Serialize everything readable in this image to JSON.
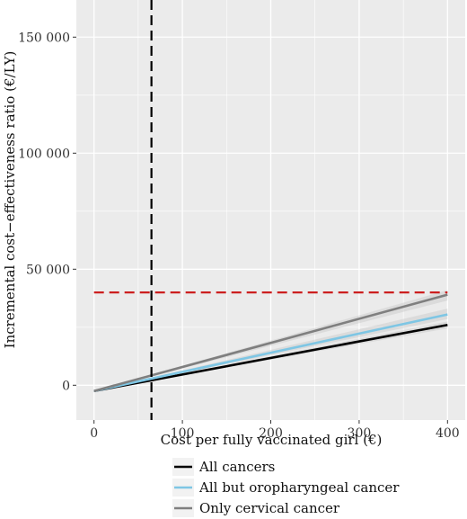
{
  "chart_data": {
    "type": "line",
    "xlabel": "Cost per fully vaccinated girl (€)",
    "ylabel": "Incremental cost−effectiveness ratio (€/LY)",
    "xlim": [
      -20,
      420
    ],
    "ylim": [
      -15000,
      166000
    ],
    "x_ticks": [
      0,
      100,
      200,
      300,
      400
    ],
    "x_tick_labels": [
      "0",
      "100",
      "200",
      "300",
      "400"
    ],
    "y_ticks": [
      0,
      50000,
      100000,
      150000
    ],
    "y_tick_labels": [
      "0",
      "50 000",
      "100 000",
      "150 000"
    ],
    "grid": true,
    "legend_position": "bottom",
    "series": [
      {
        "name": "All cancers",
        "color": "#000000",
        "x": [
          0,
          400
        ],
        "values": [
          -2500,
          26000
        ],
        "band_low": [
          -2500,
          24500
        ],
        "band_high": [
          -2500,
          27500
        ]
      },
      {
        "name": "All but oropharyngeal cancer",
        "color": "#7ec6e4",
        "x": [
          0,
          400
        ],
        "values": [
          -2500,
          30500
        ],
        "band_low": [
          -2500,
          28500
        ],
        "band_high": [
          -2500,
          33000
        ]
      },
      {
        "name": "Only cervical cancer",
        "color": "#7f7f7f",
        "x": [
          0,
          400
        ],
        "values": [
          -2500,
          39000
        ],
        "band_low": [
          -2500,
          36500
        ],
        "band_high": [
          -2500,
          41000
        ]
      }
    ],
    "reference_lines": [
      {
        "orientation": "horizontal",
        "value": 40000,
        "color": "#cc1f1f",
        "style": "dashed"
      },
      {
        "orientation": "vertical",
        "value": 65,
        "color": "#000000",
        "style": "dashed"
      }
    ]
  }
}
